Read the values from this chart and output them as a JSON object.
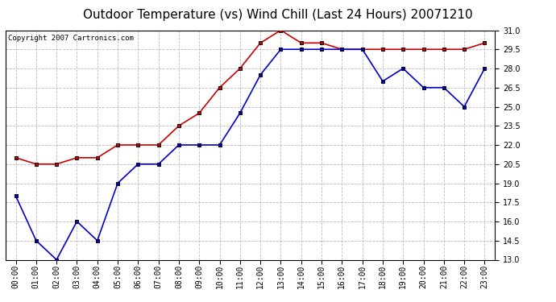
{
  "title": "Outdoor Temperature (vs) Wind Chill (Last 24 Hours) 20071210",
  "copyright": "Copyright 2007 Cartronics.com",
  "x_labels": [
    "00:00",
    "01:00",
    "02:00",
    "03:00",
    "04:00",
    "05:00",
    "06:00",
    "07:00",
    "08:00",
    "09:00",
    "10:00",
    "11:00",
    "12:00",
    "13:00",
    "14:00",
    "15:00",
    "16:00",
    "17:00",
    "18:00",
    "19:00",
    "20:00",
    "21:00",
    "22:00",
    "23:00"
  ],
  "red_data": [
    21.0,
    20.5,
    20.5,
    21.0,
    21.0,
    22.0,
    22.0,
    22.0,
    23.5,
    24.5,
    26.5,
    28.0,
    30.0,
    31.0,
    30.0,
    30.0,
    29.5,
    29.5,
    29.5,
    29.5,
    29.5,
    29.5,
    29.5,
    30.0
  ],
  "blue_data": [
    18.0,
    14.5,
    13.0,
    16.0,
    14.5,
    19.0,
    20.5,
    20.5,
    22.0,
    22.0,
    22.0,
    24.5,
    27.5,
    29.5,
    29.5,
    29.5,
    29.5,
    29.5,
    27.0,
    28.0,
    26.5,
    26.5,
    25.0,
    28.0
  ],
  "red_color": "#cc0000",
  "blue_color": "#0000cc",
  "marker_color": "#000000",
  "ylim": [
    13.0,
    31.0
  ],
  "yticks": [
    13.0,
    14.5,
    16.0,
    17.5,
    19.0,
    20.5,
    22.0,
    23.5,
    25.0,
    26.5,
    28.0,
    29.5,
    31.0
  ],
  "background_color": "#ffffff",
  "grid_color": "#bbbbbb",
  "title_fontsize": 11,
  "tick_fontsize": 7,
  "copyright_fontsize": 6.5,
  "line_width": 1.2,
  "marker_size": 3.5
}
